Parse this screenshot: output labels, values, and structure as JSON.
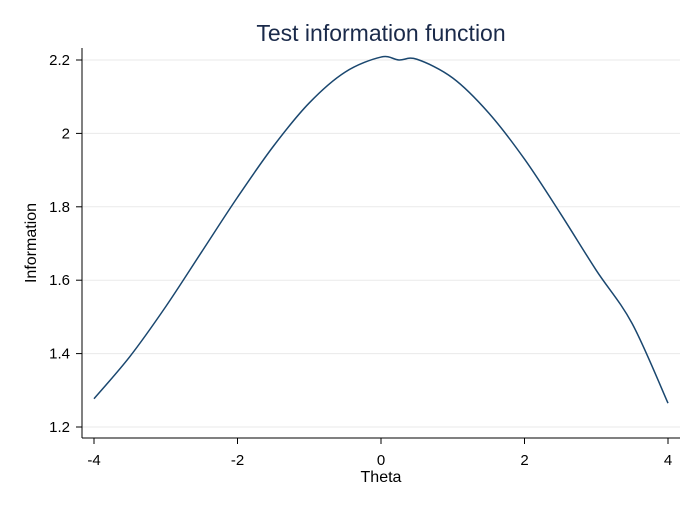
{
  "chart_data": {
    "type": "line",
    "title": "Test information function",
    "xlabel": "Theta",
    "ylabel": "Information",
    "xlim": [
      -4,
      4
    ],
    "ylim": [
      1.2,
      2.2
    ],
    "x_ticks": [
      "-4",
      "-2",
      "0",
      "2",
      "4"
    ],
    "y_ticks": [
      "1.2",
      "1.4",
      "1.6",
      "1.8",
      "2",
      "2.2"
    ],
    "grid": true,
    "line_color": "#1a476f",
    "series": [
      {
        "x": [
          -4,
          -3.5,
          -3,
          -2.5,
          -2,
          -1.5,
          -1,
          -0.5,
          0,
          0.25,
          0.5,
          1,
          1.5,
          2,
          2.5,
          3,
          3.5,
          4
        ],
        "y": [
          1.277,
          1.392,
          1.528,
          1.677,
          1.826,
          1.965,
          2.083,
          2.167,
          2.208,
          2.2,
          2.202,
          2.151,
          2.056,
          1.93,
          1.782,
          1.627,
          1.482,
          1.265
        ]
      }
    ]
  }
}
